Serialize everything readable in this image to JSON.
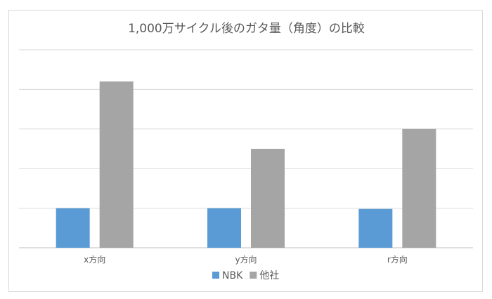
{
  "chart_data": {
    "type": "bar",
    "title": "1,000万サイクル後のガタ量（角度）の比較",
    "categories": [
      "x方向",
      "y方向",
      "r方向"
    ],
    "series": [
      {
        "name": "NBK",
        "values": [
          1.0,
          1.0,
          0.98
        ],
        "color": "#5b9bd5"
      },
      {
        "name": "他社",
        "values": [
          4.2,
          2.5,
          3.0
        ],
        "color": "#a5a5a5"
      }
    ],
    "ylim": [
      0,
      5
    ],
    "y_ticks_shown": false,
    "grid": true,
    "legend_position": "bottom"
  }
}
